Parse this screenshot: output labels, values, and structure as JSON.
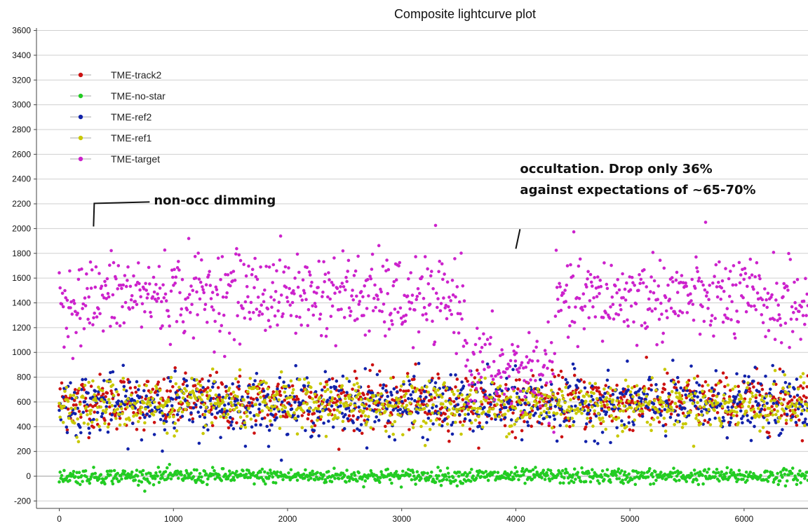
{
  "chart_data": {
    "type": "scatter",
    "title": "Composite lightcurve plot",
    "xlabel": "",
    "ylabel": "",
    "xlim": [
      -200,
      6560
    ],
    "ylim": [
      -260,
      3620
    ],
    "x_ticks": [
      0,
      1000,
      2000,
      3000,
      4000,
      5000,
      6000
    ],
    "y_ticks": [
      -200,
      0,
      200,
      400,
      600,
      800,
      1000,
      1200,
      1400,
      1600,
      1800,
      2000,
      2200,
      2400,
      2600,
      2800,
      3000,
      3200,
      3400,
      3600
    ],
    "grid": "horizontal",
    "legend_position": "top-left",
    "series": [
      {
        "name": "TME-track2",
        "color": "#cc1111",
        "x_range": [
          0,
          6560
        ],
        "mean": 600,
        "noise": 110,
        "trend": [
          [
            0,
            600
          ],
          [
            6560,
            600
          ]
        ]
      },
      {
        "name": "TME-no-star",
        "color": "#22cc22",
        "x_range": [
          0,
          6560
        ],
        "mean": 0,
        "noise": 30,
        "trend": [
          [
            0,
            0
          ],
          [
            6560,
            0
          ]
        ]
      },
      {
        "name": "TME-ref2",
        "color": "#1122aa",
        "x_range": [
          0,
          6560
        ],
        "mean": 580,
        "noise": 120,
        "trend": [
          [
            0,
            580
          ],
          [
            6560,
            580
          ]
        ]
      },
      {
        "name": "TME-ref1",
        "color": "#c8c800",
        "x_range": [
          0,
          6560
        ],
        "mean": 580,
        "noise": 100,
        "trend": [
          [
            0,
            580
          ],
          [
            6560,
            580
          ]
        ]
      },
      {
        "name": "TME-target",
        "color": "#cc22cc",
        "x_range": [
          0,
          6560
        ],
        "mean": 1480,
        "noise": 170,
        "trend": [
          [
            0,
            1450
          ],
          [
            150,
            1400
          ],
          [
            300,
            1420
          ],
          [
            500,
            1460
          ],
          [
            1500,
            1480
          ],
          [
            2500,
            1470
          ],
          [
            3000,
            1420
          ],
          [
            3500,
            1420
          ],
          [
            3550,
            1400
          ],
          [
            3560,
            900
          ],
          [
            3700,
            880
          ],
          [
            3900,
            830
          ],
          [
            4100,
            860
          ],
          [
            4340,
            860
          ],
          [
            4350,
            1400
          ],
          [
            5000,
            1450
          ],
          [
            5800,
            1440
          ],
          [
            6300,
            1400
          ],
          [
            6560,
            1380
          ]
        ]
      }
    ],
    "annotations": [
      {
        "text": "non-occ dimming",
        "x": 300,
        "y": 2000
      },
      {
        "text": "occultation. Drop only 36%",
        "x": 4000,
        "y": 1950
      },
      {
        "text": "against expectations of ~65-70%",
        "x": 4000,
        "y": 1950
      }
    ]
  }
}
